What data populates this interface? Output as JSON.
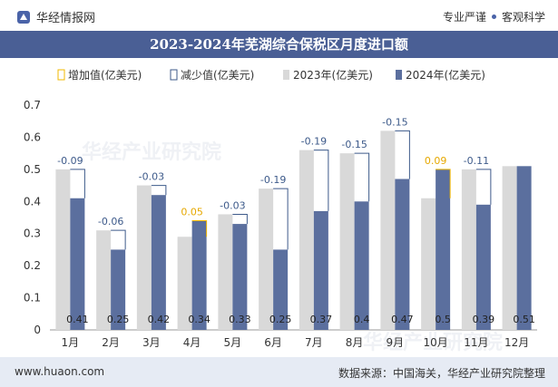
{
  "header": {
    "brand": "华经情报网",
    "slogan_left": "专业严谨",
    "slogan_right": "客观科学"
  },
  "title": "2023-2024年芜湖综合保税区月度进口额",
  "legend": {
    "increase": "增加值(亿美元)",
    "decrease": "减少值(亿美元)",
    "y2023": "2023年(亿美元)",
    "y2024": "2024年(亿美元)"
  },
  "watermark": {
    "line1": "华经产业研究院",
    "line2": "www.huaon.com"
  },
  "footer": {
    "url": "www.huaon.com",
    "source": "数据来源：中国海关，华经产业研究院整理"
  },
  "colors": {
    "bar_2023": "#d9d9d9",
    "bar_2024": "#5b6f9e",
    "increase": "#f2b800",
    "decrease": "#3d5a8a",
    "title_bg": "#4a5f95"
  },
  "chart_data": {
    "type": "bar",
    "categories": [
      "1月",
      "2月",
      "3月",
      "4月",
      "5月",
      "6月",
      "7月",
      "8月",
      "9月",
      "10月",
      "11月",
      "12月"
    ],
    "series": [
      {
        "name": "2023年(亿美元)",
        "values": [
          0.5,
          0.31,
          0.45,
          0.29,
          0.36,
          0.44,
          0.56,
          0.55,
          0.62,
          0.41,
          0.5,
          0.51
        ]
      },
      {
        "name": "2024年(亿美元)",
        "values": [
          0.41,
          0.25,
          0.42,
          0.34,
          0.33,
          0.25,
          0.37,
          0.4,
          0.47,
          0.5,
          0.39,
          0.51
        ]
      }
    ],
    "bar_labels_2024": [
      "0.41",
      "0.25",
      "0.42",
      "0.34",
      "0.33",
      "0.25",
      "0.37",
      "0.4",
      "0.47",
      "0.5",
      "0.39",
      "0.51"
    ],
    "change_labels": [
      "-0.09",
      "-0.06",
      "-0.03",
      "0.05",
      "-0.03",
      "-0.19",
      "-0.19",
      "-0.15",
      "-0.15",
      "0.09",
      "-0.11",
      ""
    ],
    "change_direction": [
      "decrease",
      "decrease",
      "decrease",
      "increase",
      "decrease",
      "decrease",
      "decrease",
      "decrease",
      "decrease",
      "increase",
      "decrease",
      "none"
    ],
    "y_ticks": [
      "0",
      "0.1",
      "0.2",
      "0.3",
      "0.4",
      "0.5",
      "0.6",
      "0.7"
    ],
    "ylim": [
      0,
      0.7
    ],
    "grid": false,
    "legend_position": "top"
  }
}
